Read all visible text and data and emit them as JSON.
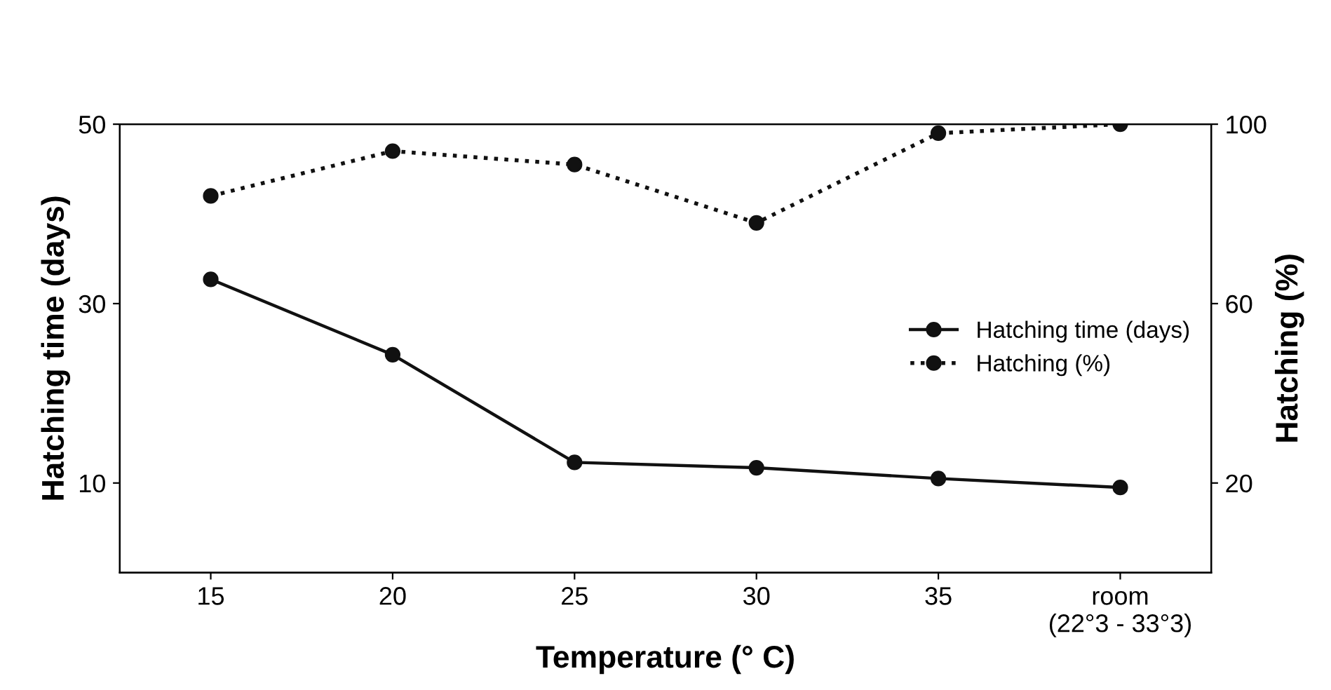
{
  "chart_data": {
    "type": "line",
    "xlabel": "Temperature (° C)",
    "ylabel": "Hatching time (days)",
    "y2label": "Hatching (%)",
    "categories": [
      "15",
      "20",
      "25",
      "30",
      "35",
      "room\n(22°3 - 33°3)"
    ],
    "series": [
      {
        "name": "Hatching time (days)",
        "color": "#111111",
        "values": [
          32.7,
          24.3,
          12.3,
          11.7,
          10.5,
          9.5
        ],
        "line_style": "solid"
      },
      {
        "name": "Hatching (%)",
        "color": "#111111",
        "values": [
          84,
          94,
          91,
          78,
          98,
          100
        ],
        "axis": "y2",
        "line_style": "dotted"
      }
    ],
    "ylim": [
      0,
      50
    ],
    "yticks": [
      10,
      30,
      50
    ],
    "y2lim": [
      0,
      100
    ],
    "y2ticks": [
      20,
      60,
      100
    ],
    "marker": "circle",
    "grid": false,
    "legend": "right"
  }
}
